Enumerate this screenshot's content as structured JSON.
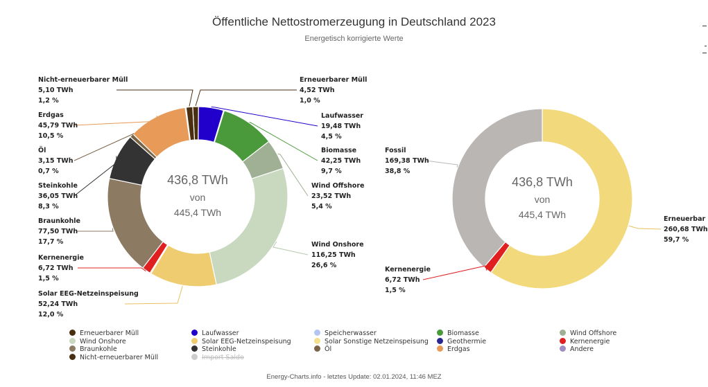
{
  "title": "Öffentliche Nettostromerzeugung in Deutschland 2023",
  "subtitle": "Energetisch korrigierte Werte",
  "footer": "Energy-Charts.info - letztes Update: 02.01.2024, 11:46 MEZ",
  "chart_data": [
    {
      "type": "pie",
      "variant": "donut",
      "title": "Öffentliche Nettostromerzeugung in Deutschland 2023",
      "center_text": [
        "436,8 TWh",
        "von",
        "445,4 TWh"
      ],
      "unit": "TWh",
      "slices": [
        {
          "name": "Erneuerbarer Müll",
          "value": 4.52,
          "value_label": "4,52 TWh",
          "percent_label": "1,0 %",
          "color": "#4a2e10",
          "labeled": true
        },
        {
          "name": "Laufwasser",
          "value": 19.48,
          "value_label": "19,48 TWh",
          "percent_label": "4,5 %",
          "color": "#2200cc",
          "labeled": true
        },
        {
          "name": "Speicherwasser",
          "value": 0.6,
          "color": "#b4c4f4",
          "labeled": false
        },
        {
          "name": "Biomasse",
          "value": 42.25,
          "value_label": "42,25 TWh",
          "percent_label": "9,7 %",
          "color": "#4a9a3c",
          "labeled": true
        },
        {
          "name": "Wind Offshore",
          "value": 23.52,
          "value_label": "23,52 TWh",
          "percent_label": "5,4 %",
          "color": "#9fb094",
          "labeled": true
        },
        {
          "name": "Wind Onshore",
          "value": 116.25,
          "value_label": "116,25 TWh",
          "percent_label": "26,6 %",
          "color": "#c8d9bf",
          "labeled": true
        },
        {
          "name": "Solar EEG-Netzeinspeisung",
          "value": 52.24,
          "value_label": "52,24 TWh",
          "percent_label": "12,0 %",
          "color": "#f0cc70",
          "labeled": true
        },
        {
          "name": "Solar Sonstige Netzeinspeisung",
          "value": 0.9,
          "color": "#f4e08c",
          "labeled": false
        },
        {
          "name": "Kernenergie",
          "value": 6.72,
          "value_label": "6,72 TWh",
          "percent_label": "1,5 %",
          "color": "#e02020",
          "labeled": true
        },
        {
          "name": "Braunkohle",
          "value": 77.5,
          "value_label": "77,50 TWh",
          "percent_label": "17,7 %",
          "color": "#8c7a62",
          "labeled": true
        },
        {
          "name": "Steinkohle",
          "value": 36.05,
          "value_label": "36,05 TWh",
          "percent_label": "8,3 %",
          "color": "#333333",
          "labeled": true
        },
        {
          "name": "Öl",
          "value": 3.15,
          "value_label": "3,15 TWh",
          "percent_label": "0,7 %",
          "color": "#7a6448",
          "labeled": true
        },
        {
          "name": "Erdgas",
          "value": 45.79,
          "value_label": "45,79 TWh",
          "percent_label": "10,5 %",
          "color": "#e89a58",
          "labeled": true
        },
        {
          "name": "Andere",
          "value": 0.7,
          "color": "#a08cc0",
          "labeled": false
        },
        {
          "name": "Nicht-erneuerbarer Müll",
          "value": 5.1,
          "value_label": "5,10 TWh",
          "percent_label": "1,2 %",
          "color": "#4a2e10",
          "labeled": true
        }
      ]
    },
    {
      "type": "pie",
      "variant": "donut",
      "center_text": [
        "436,8 TWh",
        "von",
        "445,4 TWh"
      ],
      "unit": "TWh",
      "slices": [
        {
          "name": "Erneuerbar",
          "value": 260.68,
          "value_label": "260,68 TWh",
          "percent_label": "59,7 %",
          "color": "#f2d97c",
          "labeled": true
        },
        {
          "name": "Kernenergie",
          "value": 6.72,
          "value_label": "6,72 TWh",
          "percent_label": "1,5 %",
          "color": "#e02020",
          "labeled": true
        },
        {
          "name": "Fossil",
          "value": 169.38,
          "value_label": "169,38 TWh",
          "percent_label": "38,8 %",
          "color": "#bab6b4",
          "labeled": true
        }
      ]
    }
  ],
  "legend": [
    {
      "label": "Erneuerbarer Müll",
      "color": "#4a2e10",
      "hidden": false
    },
    {
      "label": "Laufwasser",
      "color": "#2200cc",
      "hidden": false
    },
    {
      "label": "Speicherwasser",
      "color": "#b4c4f4",
      "hidden": false
    },
    {
      "label": "Biomasse",
      "color": "#4a9a3c",
      "hidden": false
    },
    {
      "label": "Wind Offshore",
      "color": "#9fb094",
      "hidden": false
    },
    {
      "label": "Wind Onshore",
      "color": "#c8d9bf",
      "hidden": false
    },
    {
      "label": "Solar EEG-Netzeinspeisung",
      "color": "#f0cc70",
      "hidden": false
    },
    {
      "label": "Solar Sonstige Netzeinspeisung",
      "color": "#f4e08c",
      "hidden": false
    },
    {
      "label": "Geothermie",
      "color": "#2a2890",
      "hidden": false
    },
    {
      "label": "Kernenergie",
      "color": "#e02020",
      "hidden": false
    },
    {
      "label": "Braunkohle",
      "color": "#8c7a62",
      "hidden": false
    },
    {
      "label": "Steinkohle",
      "color": "#333333",
      "hidden": false
    },
    {
      "label": "Öl",
      "color": "#7a6448",
      "hidden": false
    },
    {
      "label": "Erdgas",
      "color": "#e89a58",
      "hidden": false
    },
    {
      "label": "Andere",
      "color": "#a08cc0",
      "hidden": false
    },
    {
      "label": "Nicht-erneuerbarer Müll",
      "color": "#4a2e10",
      "hidden": false
    },
    {
      "label": "Import Saldo",
      "color": "#cccccc",
      "hidden": true
    }
  ]
}
